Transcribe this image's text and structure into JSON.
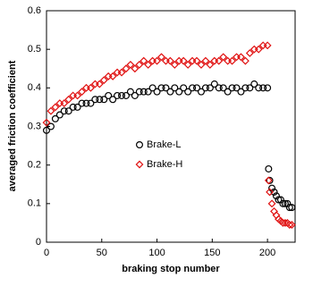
{
  "chart_data": {
    "type": "scatter",
    "xlabel": "braking stop number",
    "ylabel": "averaged friction coefficient",
    "xlim": [
      0,
      225
    ],
    "xticks": [
      0,
      50,
      100,
      150,
      200
    ],
    "ylim": [
      0,
      0.6
    ],
    "yticks": [
      0,
      0.1,
      0.2,
      0.3,
      0.4,
      0.5,
      0.6
    ],
    "legend": "center",
    "x": [
      0,
      4,
      8,
      12,
      16,
      20,
      24,
      28,
      32,
      36,
      40,
      44,
      48,
      52,
      56,
      60,
      64,
      68,
      72,
      76,
      80,
      84,
      88,
      92,
      96,
      100,
      104,
      108,
      112,
      116,
      120,
      124,
      128,
      132,
      136,
      140,
      144,
      148,
      152,
      156,
      160,
      164,
      168,
      172,
      176,
      180,
      184,
      188,
      192,
      196,
      200,
      201,
      202,
      204,
      206,
      208,
      210,
      212,
      214,
      216,
      218,
      220,
      222
    ],
    "series": [
      {
        "name": "Brake-L",
        "color": "#000000",
        "marker": "circle",
        "values": [
          0.29,
          0.3,
          0.32,
          0.33,
          0.34,
          0.34,
          0.35,
          0.35,
          0.36,
          0.36,
          0.36,
          0.37,
          0.37,
          0.37,
          0.38,
          0.37,
          0.38,
          0.38,
          0.38,
          0.39,
          0.38,
          0.39,
          0.39,
          0.39,
          0.4,
          0.39,
          0.4,
          0.4,
          0.39,
          0.4,
          0.39,
          0.4,
          0.39,
          0.4,
          0.4,
          0.39,
          0.4,
          0.4,
          0.41,
          0.4,
          0.4,
          0.39,
          0.4,
          0.4,
          0.39,
          0.4,
          0.4,
          0.41,
          0.4,
          0.4,
          0.4,
          0.19,
          0.16,
          0.14,
          0.13,
          0.12,
          0.11,
          0.11,
          0.1,
          0.1,
          0.1,
          0.09,
          0.09
        ]
      },
      {
        "name": "Brake-H",
        "color": "#e01010",
        "marker": "diamond",
        "values": [
          0.31,
          0.34,
          0.35,
          0.36,
          0.36,
          0.37,
          0.38,
          0.38,
          0.39,
          0.4,
          0.4,
          0.41,
          0.41,
          0.42,
          0.43,
          0.43,
          0.44,
          0.44,
          0.45,
          0.46,
          0.45,
          0.46,
          0.47,
          0.46,
          0.47,
          0.47,
          0.48,
          0.47,
          0.47,
          0.46,
          0.47,
          0.47,
          0.46,
          0.47,
          0.47,
          0.46,
          0.47,
          0.46,
          0.47,
          0.47,
          0.48,
          0.47,
          0.47,
          0.48,
          0.48,
          0.47,
          0.49,
          0.5,
          0.5,
          0.51,
          0.51,
          0.16,
          0.13,
          0.1,
          0.08,
          0.07,
          0.06,
          0.055,
          0.05,
          0.05,
          0.05,
          0.045,
          0.045
        ]
      }
    ]
  }
}
